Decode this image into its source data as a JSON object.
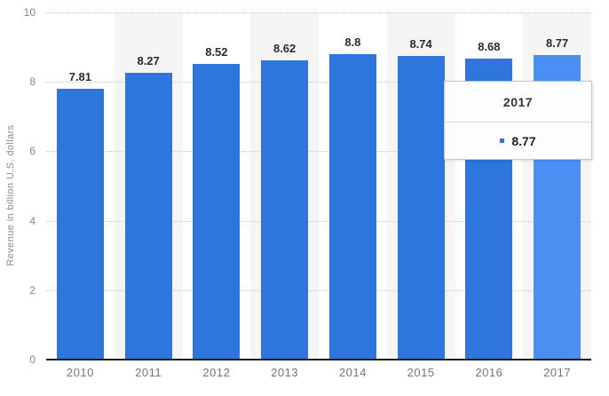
{
  "chart_data": {
    "type": "bar",
    "categories": [
      "2010",
      "2011",
      "2012",
      "2013",
      "2014",
      "2015",
      "2016",
      "2017"
    ],
    "values": [
      7.81,
      8.27,
      8.52,
      8.62,
      8.8,
      8.74,
      8.68,
      8.77
    ],
    "value_labels": [
      "7.81",
      "8.27",
      "8.52",
      "8.62",
      "8.8",
      "8.74",
      "8.68",
      "8.77"
    ],
    "title": "",
    "xlabel": "",
    "ylabel": "Revenue in billion U.S. dollars",
    "ylim": [
      0,
      10
    ],
    "yticks": [
      0,
      2,
      4,
      6,
      8,
      10
    ],
    "grid": "horizontal-dotted",
    "legend": "none",
    "bar_color": "#2e75dc",
    "highlight_color": "#4a8ff2",
    "highlighted_index": 7,
    "stripe_color": "#f5f5f5",
    "tooltip": {
      "title": "2017",
      "value": "8.77",
      "marker_color": "#2e75dc"
    }
  }
}
